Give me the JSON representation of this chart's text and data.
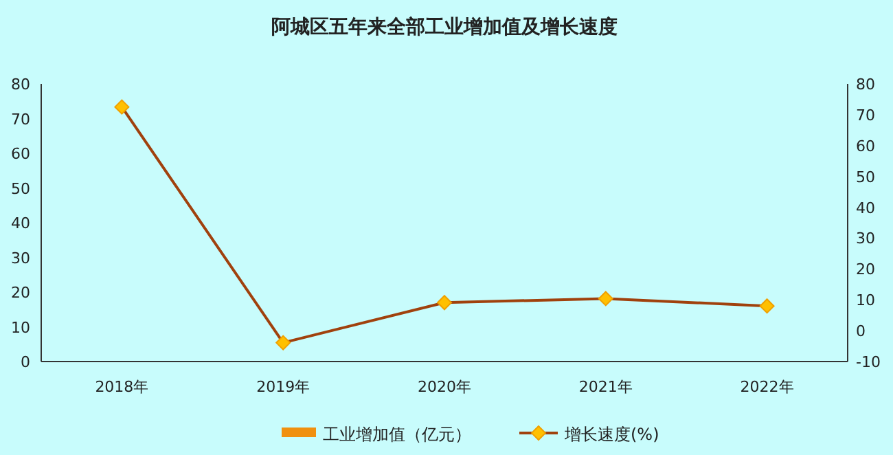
{
  "chart_data": {
    "type": "bar",
    "title": "阿城区五年来全部工业增加值及增长速度",
    "categories": [
      "2018年",
      "2019年",
      "2020年",
      "2021年",
      "2022年"
    ],
    "series": [
      {
        "name": "工业增加值（亿元）",
        "color": "#f0900f",
        "values": [
          null,
          null,
          null,
          null,
          null
        ]
      },
      {
        "name": "增长速度(%)",
        "type": "line",
        "axis": "y2",
        "color": "#a0410d",
        "values": [
          72.5,
          -3.9,
          9.1,
          10.4,
          8.0
        ]
      }
    ],
    "ylim": [
      0,
      80
    ],
    "yticks": [
      0,
      10,
      20,
      30,
      40,
      50,
      60,
      70,
      80
    ],
    "y2lim": [
      -10,
      80
    ],
    "y2ticks": [
      -10,
      0,
      10,
      20,
      30,
      40,
      50,
      60,
      70,
      80
    ],
    "legend": "bottom",
    "marker": "diamond",
    "line_style": "solid",
    "grid": false
  }
}
